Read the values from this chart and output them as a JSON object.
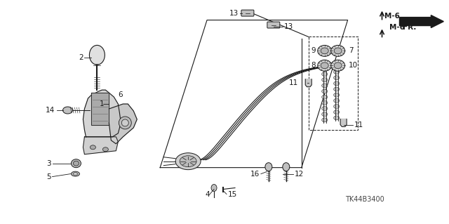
{
  "bg_color": "#ffffff",
  "fig_width": 6.4,
  "fig_height": 3.19,
  "dpi": 100,
  "text_color": "#1a1a1a",
  "catalog_number": "TK44B3400",
  "labels": {
    "1": [
      0.148,
      0.465,
      "right"
    ],
    "2": [
      0.148,
      0.72,
      "right"
    ],
    "3": [
      0.082,
      0.198,
      "right"
    ],
    "4": [
      0.318,
      0.058,
      "center"
    ],
    "5": [
      0.07,
      0.148,
      "right"
    ],
    "6": [
      0.268,
      0.545,
      "right"
    ],
    "7": [
      0.72,
      0.745,
      "left"
    ],
    "8": [
      0.612,
      0.728,
      "right"
    ],
    "9": [
      0.612,
      0.775,
      "right"
    ],
    "10": [
      0.72,
      0.7,
      "left"
    ],
    "11a": [
      0.572,
      0.7,
      "right"
    ],
    "11b": [
      0.758,
      0.548,
      "left"
    ],
    "12": [
      0.688,
      0.215,
      "left"
    ],
    "13a": [
      0.548,
      0.922,
      "right"
    ],
    "13b": [
      0.632,
      0.878,
      "left"
    ],
    "14": [
      0.09,
      0.518,
      "right"
    ],
    "15": [
      0.328,
      0.058,
      "left"
    ],
    "16": [
      0.585,
      0.215,
      "right"
    ]
  }
}
